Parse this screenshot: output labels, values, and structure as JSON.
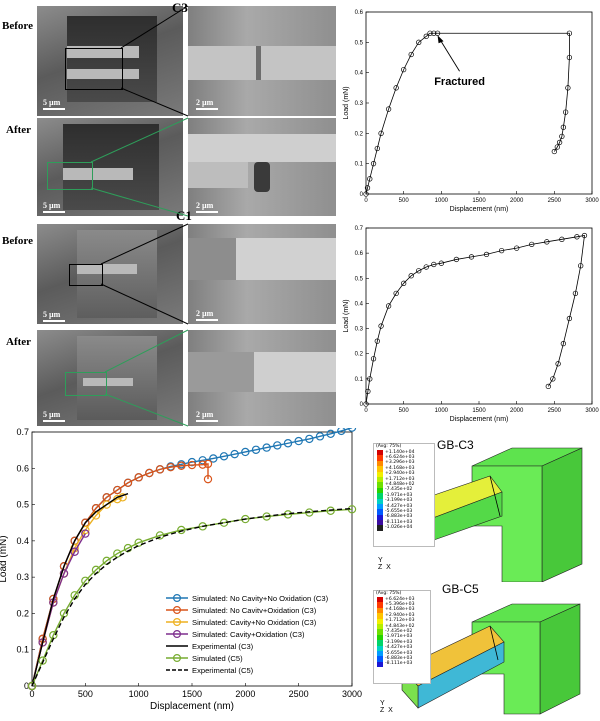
{
  "labels": {
    "before": "Before",
    "after": "After",
    "c3": "C3",
    "c1": "C1",
    "scale_5um": "5 µm",
    "scale_2um": "2 µm",
    "fractured": "Fractured",
    "gb_c3": "GB-C3",
    "gb_c5": "GB-C5",
    "avg": "(Avg: 75%)"
  },
  "legend_c3": [
    "+1.140e+04",
    "+6.624e+03",
    "+3.296e+03",
    "+4.168e+03",
    "+2.940e+03",
    "+1.712e+03",
    "+4.848e+02",
    "-7.435e+02",
    "-1.971e+03",
    "-3.199e+03",
    "-4.427e+03",
    "-5.655e+03",
    "-6.883e+03",
    "-8.111e+03",
    "-1.026e+04"
  ],
  "legend_c5": [
    "+6.624e+03",
    "+5.396e+03",
    "+4.168e+03",
    "+2.940e+03",
    "+1.712e+03",
    "+4.843e+02",
    "-7.435e+02",
    "-1.971e+03",
    "-3.199e+03",
    "-4.427e+03",
    "-5.655e+03",
    "-6.883e+03",
    "-8.111e+03"
  ],
  "legend_colors": [
    "#d40000",
    "#ff3a00",
    "#ff8a00",
    "#ffc400",
    "#f2ef00",
    "#b4ef00",
    "#6ee000",
    "#27d400",
    "#00d46a",
    "#00d1c4",
    "#009cff",
    "#005aff",
    "#1b17d4",
    "#3c0c9f",
    "#202020"
  ],
  "triad": {
    "y": "Y",
    "z": "Z",
    "x": "X"
  },
  "chart_data": [
    {
      "type": "scatter",
      "title": "",
      "xlabel": "Displacement (nm)",
      "ylabel": "Load (mN)",
      "xlim": [
        0,
        3000
      ],
      "ylim": [
        0,
        0.6
      ],
      "xticks": [
        "0",
        "500",
        "1000",
        "1500",
        "2000",
        "2500",
        "3000"
      ],
      "yticks": [
        "0",
        "0.1",
        "0.2",
        "0.3",
        "0.4",
        "0.5",
        "0.6"
      ],
      "series": [
        {
          "x": [
            0,
            20,
            50,
            100,
            150,
            200,
            300,
            400,
            500,
            600,
            700,
            800,
            850,
            900,
            950,
            2700,
            2700,
            2680,
            2650,
            2620,
            2600,
            2570,
            2540,
            2500
          ],
          "y": [
            0,
            0.02,
            0.05,
            0.1,
            0.15,
            0.2,
            0.28,
            0.35,
            0.41,
            0.46,
            0.5,
            0.52,
            0.53,
            0.53,
            0.53,
            0.53,
            0.45,
            0.35,
            0.27,
            0.22,
            0.19,
            0.17,
            0.155,
            0.14
          ]
        }
      ],
      "annotation": "Fractured"
    },
    {
      "type": "scatter",
      "title": "",
      "xlabel": "Displacement (nm)",
      "ylabel": "Load (mN)",
      "xlim": [
        0,
        3000
      ],
      "ylim": [
        0,
        0.7
      ],
      "xticks": [
        "0",
        "500",
        "1000",
        "1500",
        "2000",
        "2500",
        "3000"
      ],
      "yticks": [
        "0",
        "0.1",
        "0.2",
        "0.3",
        "0.4",
        "0.5",
        "0.6",
        "0.7"
      ],
      "series": [
        {
          "x": [
            0,
            25,
            50,
            100,
            150,
            200,
            300,
            400,
            500,
            600,
            700,
            800,
            900,
            1000,
            1200,
            1400,
            1600,
            1800,
            2000,
            2200,
            2400,
            2600,
            2800,
            2900,
            2850,
            2780,
            2700,
            2620,
            2550,
            2480,
            2420
          ],
          "y": [
            0,
            0.05,
            0.1,
            0.18,
            0.25,
            0.31,
            0.39,
            0.44,
            0.48,
            0.51,
            0.53,
            0.545,
            0.555,
            0.56,
            0.575,
            0.585,
            0.595,
            0.61,
            0.62,
            0.635,
            0.645,
            0.655,
            0.665,
            0.67,
            0.55,
            0.44,
            0.34,
            0.24,
            0.16,
            0.1,
            0.07
          ]
        }
      ]
    },
    {
      "type": "line",
      "title": "",
      "xlabel": "Displacement (nm)",
      "ylabel": "Load (mN)",
      "xlim": [
        0,
        3000
      ],
      "ylim": [
        0,
        0.7
      ],
      "xticks": [
        "0",
        "500",
        "1000",
        "1500",
        "2000",
        "2500",
        "3000"
      ],
      "yticks": [
        "0",
        "0.1",
        "0.2",
        "0.3",
        "0.4",
        "0.5",
        "0.6",
        "0.7"
      ],
      "series": [
        {
          "name": "Simulated: No Cavity+No Oxidation (C3)",
          "color": "#1f77b4",
          "marker": true,
          "dash": false,
          "x": [
            0,
            100,
            200,
            300,
            400,
            500,
            600,
            700,
            800,
            900,
            1000,
            1100,
            1200,
            1300,
            1400,
            1500,
            1600,
            1700,
            1800,
            1900,
            2000,
            2100,
            2200,
            2300,
            2400,
            2500,
            2600,
            2700,
            2800,
            2900,
            3000
          ],
          "y": [
            0,
            0.13,
            0.24,
            0.33,
            0.4,
            0.45,
            0.49,
            0.52,
            0.54,
            0.56,
            0.575,
            0.587,
            0.597,
            0.605,
            0.611,
            0.617,
            0.622,
            0.627,
            0.633,
            0.639,
            0.645,
            0.651,
            0.657,
            0.663,
            0.669,
            0.675,
            0.681,
            0.688,
            0.695,
            0.703,
            0.712
          ]
        },
        {
          "name": "Simulated: No Cavitv+Oxidation (C3)",
          "color": "#d95319",
          "marker": true,
          "dash": false,
          "x": [
            0,
            100,
            200,
            300,
            400,
            500,
            600,
            700,
            800,
            900,
            1000,
            1100,
            1200,
            1300,
            1400,
            1500,
            1600,
            1650,
            1650
          ],
          "y": [
            0,
            0.13,
            0.24,
            0.33,
            0.4,
            0.45,
            0.49,
            0.52,
            0.54,
            0.56,
            0.575,
            0.587,
            0.597,
            0.603,
            0.607,
            0.609,
            0.61,
            0.612,
            0.57
          ]
        },
        {
          "name": "Simulated: Cavity+No Oxidation  (C3)",
          "color": "#edb120",
          "marker": true,
          "dash": false,
          "x": [
            0,
            100,
            200,
            300,
            400,
            500,
            600,
            700,
            800,
            850
          ],
          "y": [
            0,
            0.12,
            0.23,
            0.31,
            0.38,
            0.43,
            0.47,
            0.5,
            0.515,
            0.52
          ]
        },
        {
          "name": "Simulated: Cavity+Oxidation (C3)",
          "color": "#7e2f8e",
          "marker": true,
          "dash": false,
          "x": [
            0,
            100,
            200,
            300,
            400,
            500
          ],
          "y": [
            0,
            0.12,
            0.23,
            0.31,
            0.37,
            0.42
          ]
        },
        {
          "name": "Experimental (C3)",
          "color": "#000000",
          "marker": false,
          "dash": false,
          "x": [
            0,
            100,
            200,
            300,
            400,
            500,
            600,
            700,
            800,
            900
          ],
          "y": [
            0,
            0.12,
            0.24,
            0.33,
            0.4,
            0.45,
            0.48,
            0.5,
            0.52,
            0.53
          ]
        },
        {
          "name": "Simulated (C5)",
          "color": "#77ac30",
          "marker": true,
          "dash": false,
          "x": [
            0,
            100,
            200,
            300,
            400,
            500,
            600,
            700,
            800,
            900,
            1000,
            1200,
            1400,
            1600,
            1800,
            2000,
            2200,
            2400,
            2600,
            2800,
            3000
          ],
          "y": [
            0,
            0.07,
            0.14,
            0.2,
            0.25,
            0.29,
            0.32,
            0.345,
            0.365,
            0.38,
            0.395,
            0.415,
            0.43,
            0.44,
            0.45,
            0.46,
            0.467,
            0.473,
            0.478,
            0.483,
            0.487
          ]
        },
        {
          "name": "Experimental (C5)",
          "color": "#000000",
          "marker": false,
          "dash": true,
          "x": [
            0,
            100,
            200,
            300,
            400,
            500,
            600,
            700,
            800,
            900,
            1000,
            1200,
            1400,
            1600,
            1800,
            2000,
            2200,
            2400,
            2600,
            2800,
            3000
          ],
          "y": [
            0,
            0.065,
            0.13,
            0.19,
            0.24,
            0.28,
            0.31,
            0.335,
            0.355,
            0.372,
            0.387,
            0.41,
            0.427,
            0.44,
            0.45,
            0.46,
            0.468,
            0.475,
            0.48,
            0.485,
            0.489
          ]
        }
      ]
    }
  ]
}
